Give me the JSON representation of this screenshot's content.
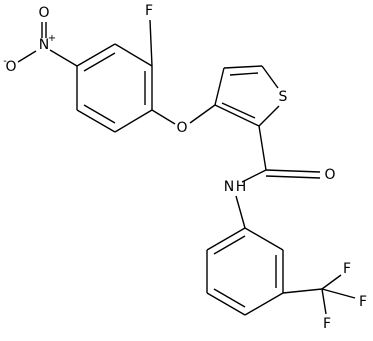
{
  "atoms": [
    "O",
    "N",
    "+",
    "O",
    "-",
    "F",
    "O",
    "S",
    "O",
    "N",
    "H",
    "F",
    "F",
    "F"
  ]
}
